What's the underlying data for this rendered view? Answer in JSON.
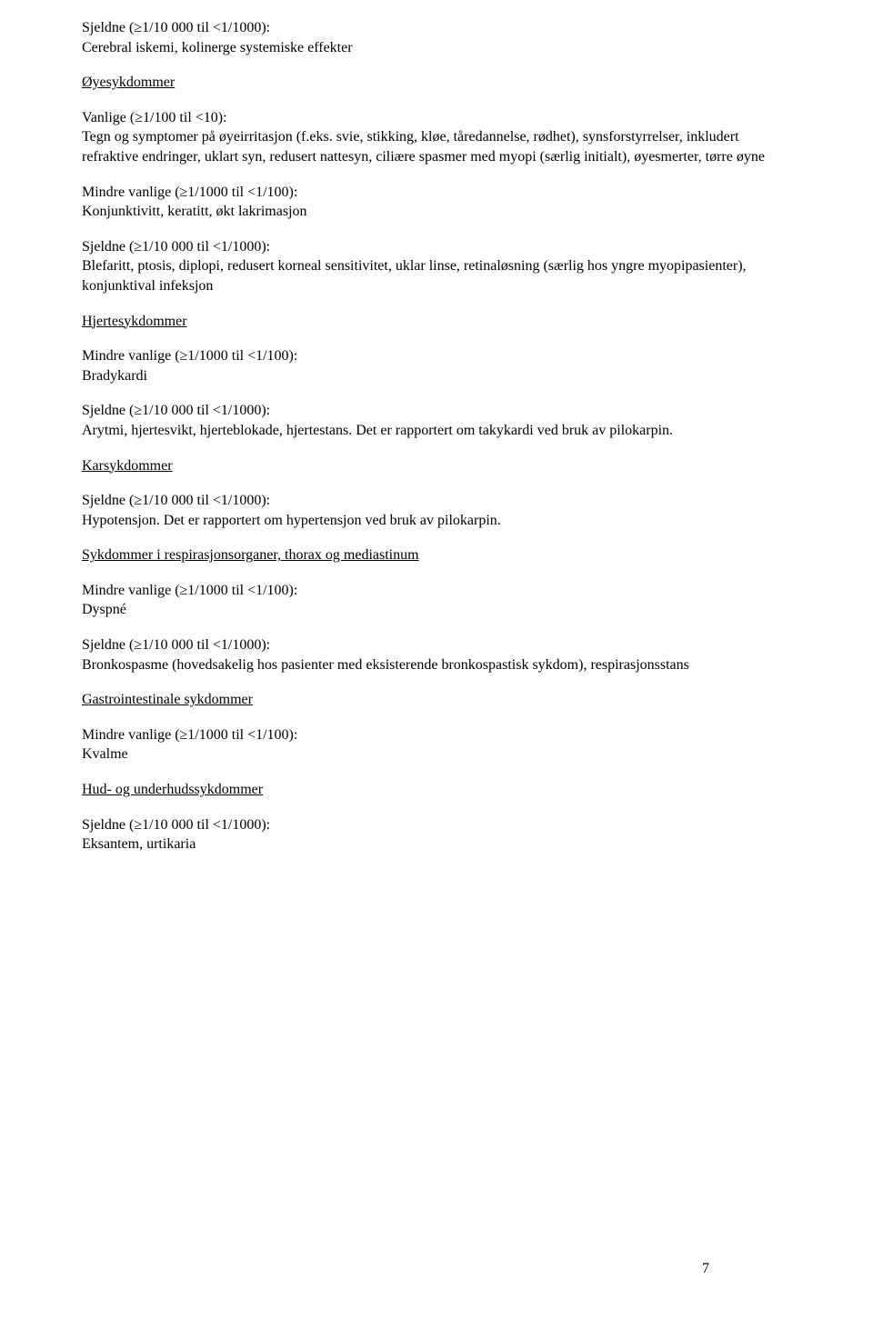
{
  "sections": [
    {
      "freq_header": "Sjeldne (≥1/10 000 til <1/1000):",
      "freq_body": "Cerebral iskemi, kolinerge systemiske effekter"
    },
    {
      "category": "Øyesykdommer"
    },
    {
      "freq_header": "Vanlige (≥1/100 til <10):",
      "freq_body": "Tegn og symptomer på øyeirritasjon (f.eks. svie, stikking, kløe, tåredannelse, rødhet), synsforstyrrelser, inkludert refraktive endringer, uklart syn, redusert nattesyn, ciliære spasmer med myopi (særlig initialt), øyesmerter, tørre øyne"
    },
    {
      "freq_header": "Mindre vanlige (≥1/1000 til <1/100):",
      "freq_body": "Konjunktivitt, keratitt, økt lakrimasjon"
    },
    {
      "freq_header": "Sjeldne (≥1/10 000 til <1/1000):",
      "freq_body": "Blefaritt, ptosis, diplopi, redusert korneal sensitivitet, uklar linse, retinaløsning (særlig hos yngre myopipasienter), konjunktival infeksjon"
    },
    {
      "category": "Hjertesykdommer"
    },
    {
      "freq_header": "Mindre vanlige (≥1/1000 til <1/100):",
      "freq_body": "Bradykardi"
    },
    {
      "freq_header": "Sjeldne (≥1/10 000 til <1/1000):",
      "freq_body": "Arytmi, hjertesvikt, hjerteblokade, hjertestans. Det er rapportert om takykardi ved bruk av pilokarpin."
    },
    {
      "category": "Karsykdommer"
    },
    {
      "freq_header": "Sjeldne (≥1/10 000 til <1/1000):",
      "freq_body": "Hypotensjon. Det er rapportert om hypertensjon ved bruk av pilokarpin."
    },
    {
      "category": "Sykdommer i respirasjonsorganer, thorax og mediastinum"
    },
    {
      "freq_header": "Mindre vanlige (≥1/1000 til <1/100):",
      "freq_body": "Dyspné"
    },
    {
      "freq_header": "Sjeldne (≥1/10 000 til <1/1000):",
      "freq_body": "Bronkospasme (hovedsakelig hos pasienter med eksisterende bronkospastisk sykdom), respirasjonsstans"
    },
    {
      "category": "Gastrointestinale sykdommer"
    },
    {
      "freq_header": "Mindre vanlige (≥1/1000 til <1/100):",
      "freq_body": "Kvalme"
    },
    {
      "category": "Hud- og underhudssykdommer"
    },
    {
      "freq_header": "Sjeldne (≥1/10 000 til <1/1000):",
      "freq_body": "Eksantem, urtikaria"
    }
  ],
  "page_number": "7"
}
